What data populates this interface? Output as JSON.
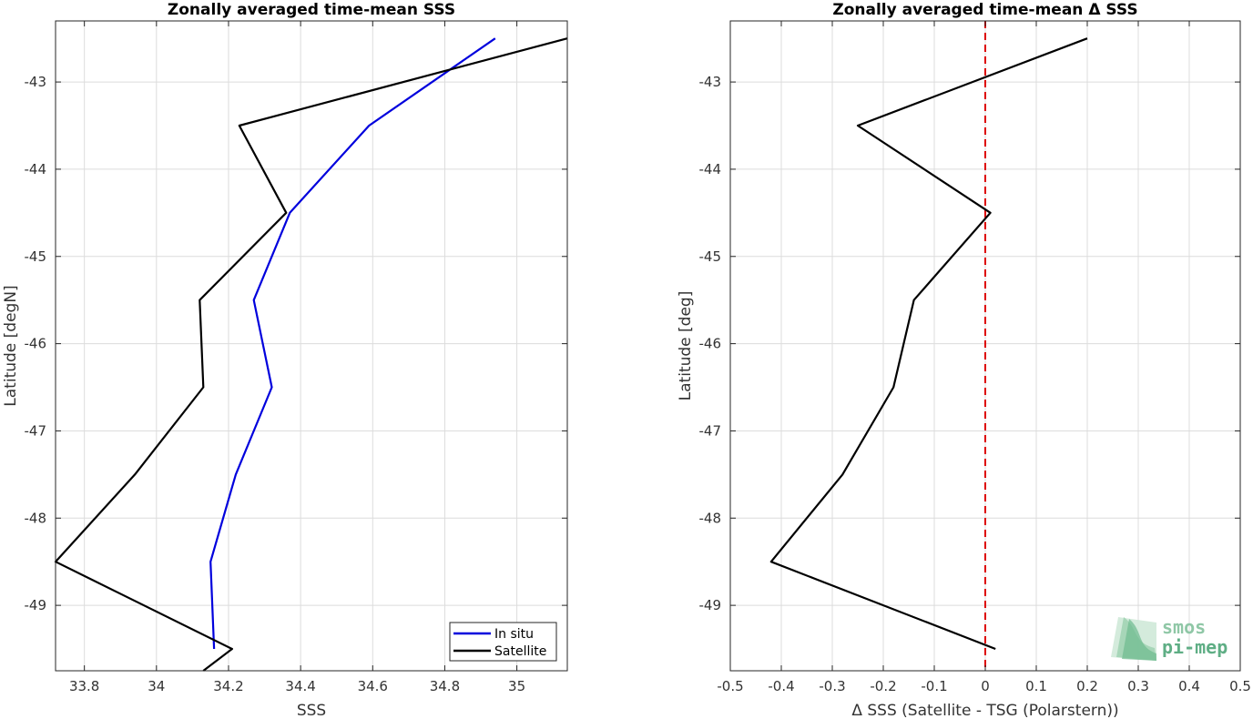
{
  "chart_data": [
    {
      "type": "line",
      "title": "Zonally averaged time-mean SSS",
      "xlabel": "SSS",
      "ylabel": "Latitude [degN]",
      "xlim": [
        33.72,
        35.14
      ],
      "ylim": [
        -49.75,
        -42.3
      ],
      "xticks": [
        33.8,
        34,
        34.2,
        34.4,
        34.6,
        34.8,
        35
      ],
      "xtick_labels": [
        "33.8",
        "34",
        "34.2",
        "34.4",
        "34.6",
        "34.8",
        "35"
      ],
      "yticks": [
        -43,
        -44,
        -45,
        -46,
        -47,
        -48,
        -49
      ],
      "ytick_labels": [
        "-43",
        "-44",
        "-45",
        "-46",
        "-47",
        "-48",
        "-49"
      ],
      "grid": true,
      "legend": "bottom-right",
      "series": [
        {
          "name": "In situ",
          "color": "#0000dd",
          "x": [
            34.94,
            34.59,
            34.37,
            34.27,
            34.32,
            34.22,
            34.15,
            34.16
          ],
          "y": [
            -42.5,
            -43.5,
            -44.5,
            -45.5,
            -46.5,
            -47.5,
            -48.5,
            -49.5
          ]
        },
        {
          "name": "Satellite",
          "color": "#000000",
          "x": [
            35.14,
            34.23,
            34.36,
            34.12,
            34.13,
            33.94,
            33.72,
            34.21,
            34.13
          ],
          "y": [
            -42.5,
            -43.5,
            -44.5,
            -45.5,
            -46.5,
            -47.5,
            -48.5,
            -49.5,
            -49.75
          ]
        }
      ]
    },
    {
      "type": "line",
      "title": "Zonally averaged time-mean Δ SSS",
      "xlabel": "Δ SSS (Satellite - TSG (Polarstern))",
      "ylabel": "Latitude [deg]",
      "xlim": [
        -0.5,
        0.5
      ],
      "ylim": [
        -49.75,
        -42.3
      ],
      "xticks": [
        -0.5,
        -0.4,
        -0.3,
        -0.2,
        -0.1,
        0,
        0.1,
        0.2,
        0.3,
        0.4,
        0.5
      ],
      "xtick_labels": [
        "-0.5",
        "-0.4",
        "-0.3",
        "-0.2",
        "-0.1",
        "0",
        "0.1",
        "0.2",
        "0.3",
        "0.4",
        "0.5"
      ],
      "yticks": [
        -43,
        -44,
        -45,
        -46,
        -47,
        -48,
        -49
      ],
      "ytick_labels": [
        "-43",
        "-44",
        "-45",
        "-46",
        "-47",
        "-48",
        "-49"
      ],
      "grid": true,
      "reference_line": {
        "x": 0,
        "style": "dashed",
        "color": "#dd0000"
      },
      "series": [
        {
          "color": "#000000",
          "x": [
            0.2,
            -0.25,
            0.01,
            -0.14,
            -0.18,
            -0.28,
            -0.42,
            0.02
          ],
          "y": [
            -42.5,
            -43.5,
            -44.5,
            -45.5,
            -46.5,
            -47.5,
            -48.5,
            -49.5
          ]
        }
      ]
    }
  ],
  "logo": {
    "line1": "smos",
    "line2": "pi-mep"
  }
}
